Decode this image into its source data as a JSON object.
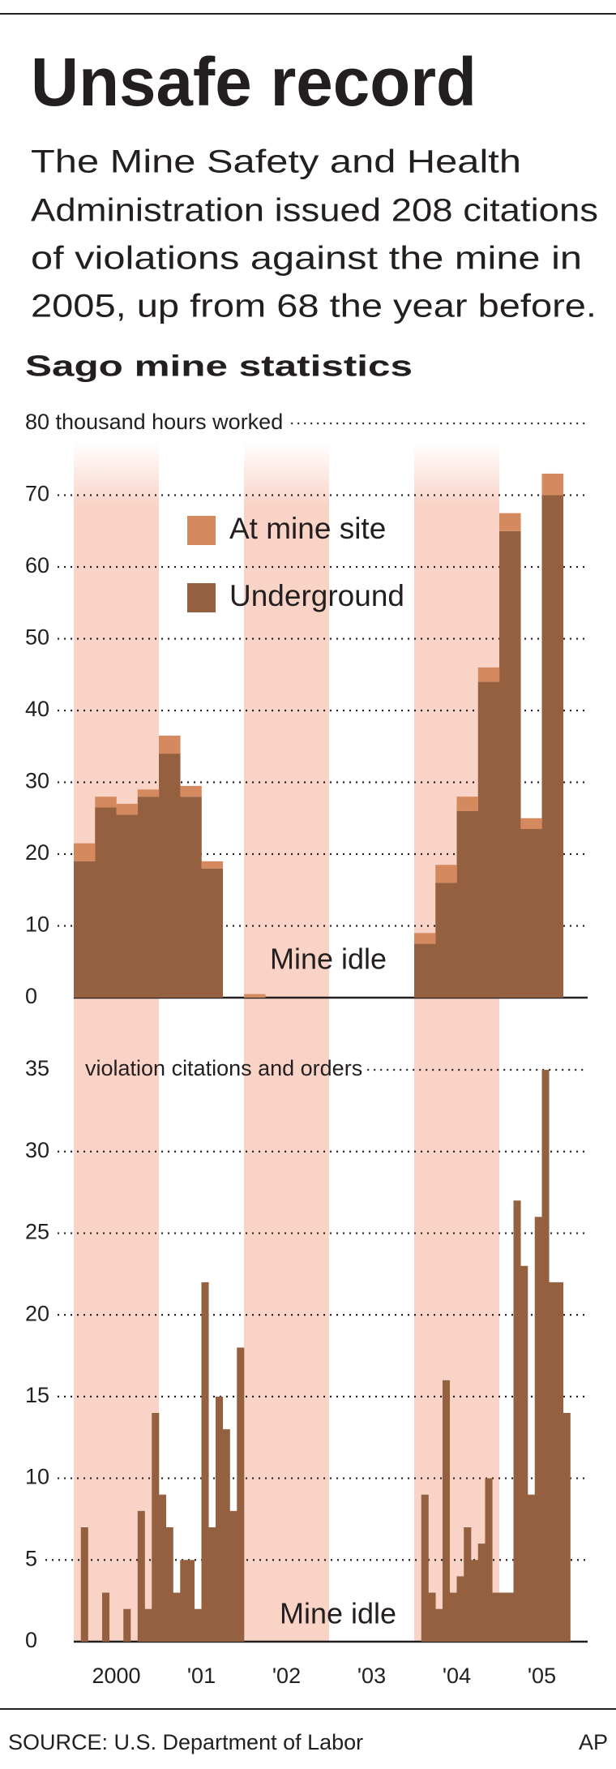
{
  "title": "Unsafe record",
  "subtitle": [
    "The Mine Safety and Health",
    "Administration issued 208 citations",
    "of violations against the mine in",
    "2005, up from 68 the year before."
  ],
  "source": "SOURCE: U.S. Department of Labor",
  "credit": "AP",
  "chart_data": [
    {
      "type": "bar",
      "stacked": true,
      "title": "Sago mine statistics",
      "categories": [
        null,
        null,
        null,
        null,
        null,
        null,
        null,
        null,
        null,
        null,
        null,
        null,
        null,
        null,
        null,
        null,
        null,
        null,
        null,
        null,
        null,
        null,
        null,
        null
      ],
      "series": [
        {
          "name": "Underground",
          "color": "#94603f",
          "values": [
            19,
            26.5,
            25.5,
            28,
            34,
            28,
            18,
            0,
            0,
            0,
            0,
            0,
            0,
            0,
            0,
            0,
            7.5,
            16,
            26,
            44,
            65,
            23.5,
            70,
            null
          ]
        },
        {
          "name": "At mine site",
          "color": "#d4895e",
          "values": [
            2.5,
            1.5,
            1.5,
            1,
            2.5,
            1.5,
            1,
            0,
            0.5,
            0,
            0,
            0,
            0,
            0,
            0,
            0,
            1.5,
            2.5,
            2,
            2,
            2.5,
            1.5,
            3,
            null
          ]
        }
      ],
      "ylim": [
        0,
        80
      ],
      "yticks": [
        0,
        10,
        20,
        30,
        40,
        50,
        60,
        70,
        {
          "value": 80,
          "label": "80 thousand hours worked"
        }
      ],
      "grid": true,
      "annotation": "Mine idle"
    },
    {
      "type": "bar",
      "ylabel": "violation citations and orders",
      "categories": [
        null,
        null,
        null,
        null,
        null,
        null,
        null,
        null,
        null,
        null,
        null,
        null,
        null,
        null,
        null,
        null,
        null,
        null,
        null,
        null,
        null,
        null,
        null,
        null,
        null,
        null,
        null,
        null,
        null,
        null,
        null,
        null,
        null,
        null,
        null,
        null,
        null,
        null,
        null,
        null,
        null,
        null,
        null,
        null,
        null,
        null,
        null,
        null,
        null,
        null,
        null,
        null,
        null,
        null,
        null,
        null,
        null,
        null,
        null,
        null,
        null,
        null,
        null,
        null,
        null,
        null,
        null,
        null,
        null,
        null,
        null,
        null
      ],
      "values": [
        0,
        7,
        0,
        0,
        3,
        0,
        0,
        2,
        0,
        8,
        2,
        14,
        9,
        7,
        3,
        5,
        5,
        2,
        22,
        7,
        15,
        13,
        8,
        18,
        0,
        0,
        0,
        0,
        0,
        0,
        0,
        0,
        0,
        0,
        0,
        0,
        0,
        0,
        0,
        0,
        0,
        0,
        0,
        0,
        0,
        0,
        0,
        0,
        0,
        9,
        3,
        2,
        16,
        3,
        4,
        7,
        5,
        6,
        10,
        3,
        3,
        3,
        27,
        23,
        9,
        26,
        35,
        22,
        22,
        14,
        0,
        0
      ],
      "color": "#94603f",
      "ylim": [
        0,
        35
      ],
      "yticks": [
        0,
        5,
        10,
        15,
        20,
        25,
        30,
        35
      ],
      "grid": true,
      "annotation": "Mine idle",
      "year_labels": [
        "2000",
        "'01",
        "'02",
        "'03",
        "'04",
        "'05"
      ]
    }
  ]
}
